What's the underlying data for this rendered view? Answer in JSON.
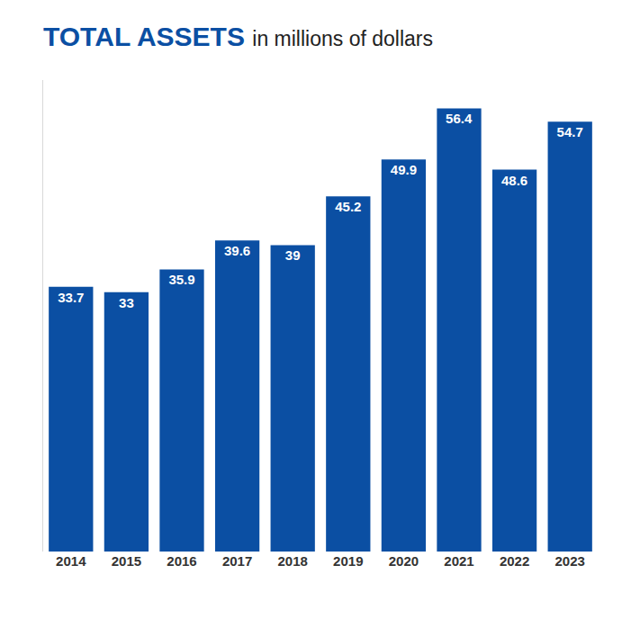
{
  "chart_data": {
    "type": "bar",
    "title": "TOTAL ASSETS",
    "subtitle": "in millions of dollars",
    "categories": [
      "2014",
      "2015",
      "2016",
      "2017",
      "2018",
      "2019",
      "2020",
      "2021",
      "2022",
      "2023"
    ],
    "values": [
      33.7,
      33,
      35.9,
      39.6,
      39,
      45.2,
      49.9,
      56.4,
      48.6,
      54.7
    ],
    "color": "#0b4fa3",
    "ylim": [
      0,
      60
    ],
    "grid": false,
    "data_labels": true,
    "tick_labels": "x"
  }
}
